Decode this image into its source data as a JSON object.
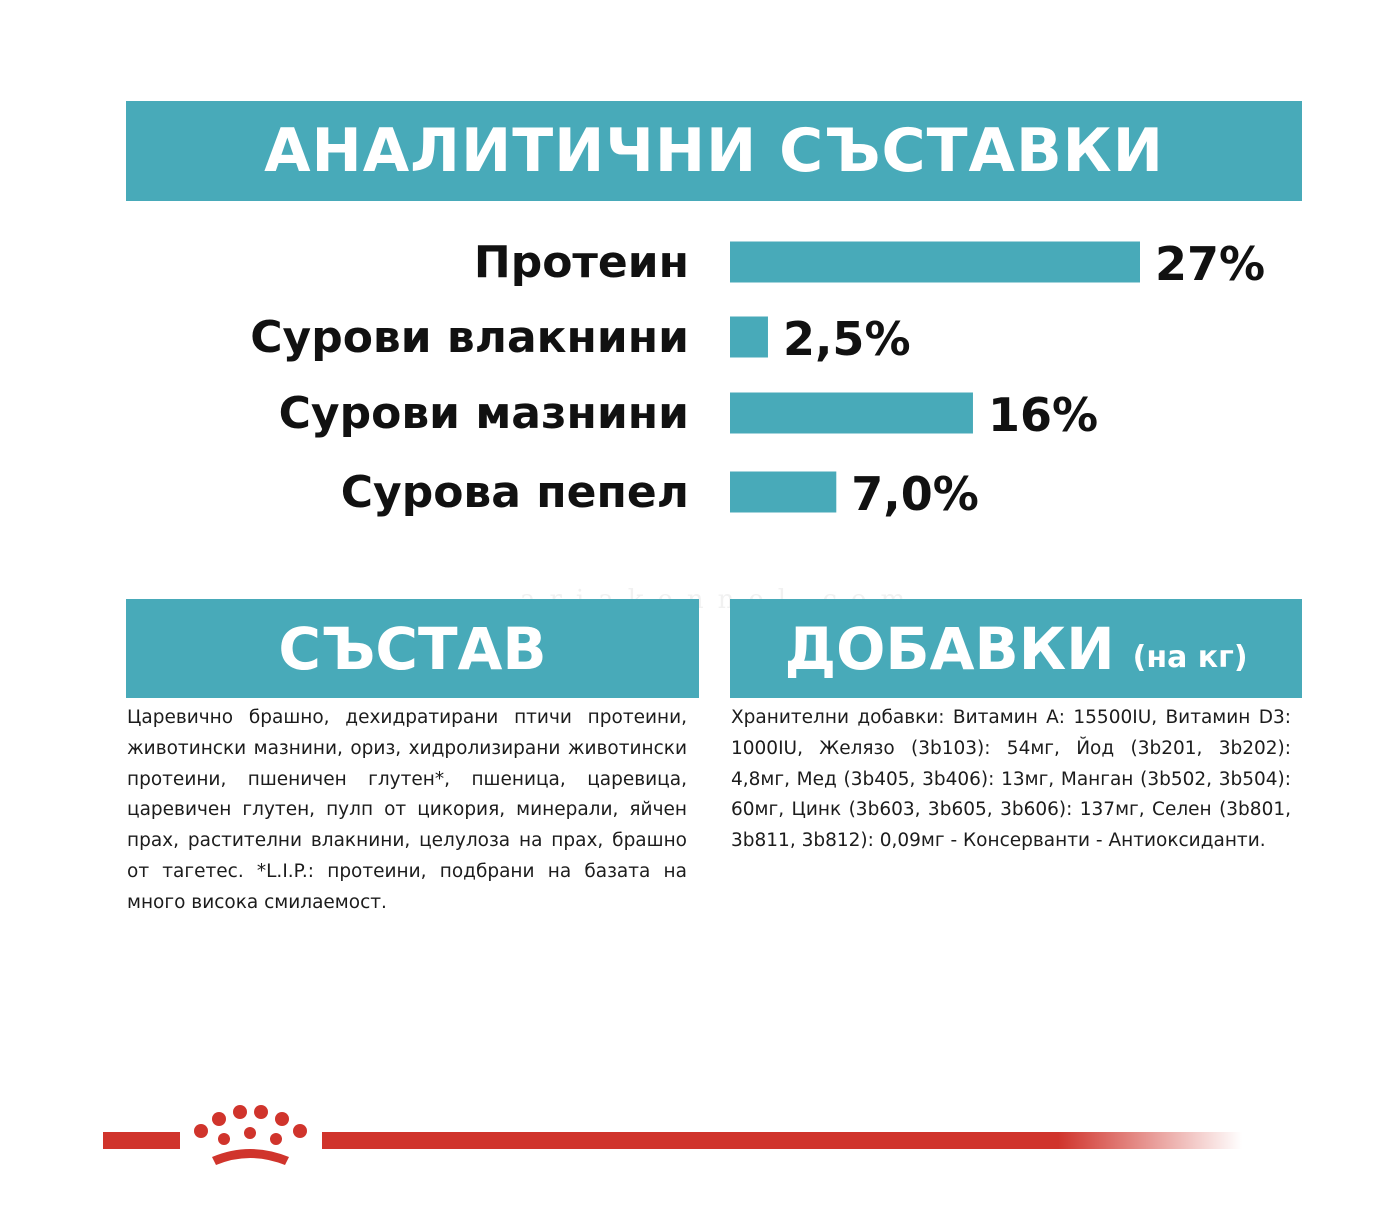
{
  "header": {
    "title": "АНАЛИТИЧНИ СЪСТАВКИ"
  },
  "chart_data": {
    "type": "bar",
    "orientation": "horizontal",
    "categories": [
      "Протеин",
      "Сурови влакнини",
      "Сурови мазнини",
      "Сурова пепел"
    ],
    "values": [
      27,
      2.5,
      16,
      7.0
    ],
    "value_labels": [
      "27%",
      "2,5%",
      "16%",
      "7,0%"
    ],
    "unit": "%",
    "grid": false,
    "bar_color": "#48aab9"
  },
  "composition": {
    "title": "СЪСТАВ",
    "text": "Царевично брашно, дехидратирани птичи протеини, животински мазнини, ориз, хидролизирани животински протеини, пшеничен глутен*, пшеница, царевица, царевичен глутен, пулп от цикория, минерали, яйчен прах, растителни влакнини, целулоза на прах, брашно от тагетес. *L.I.P.: протеини, подбрани на базата на много висока смилаемост."
  },
  "additives": {
    "title": "ДОБАВКИ",
    "unit": "(на кг)",
    "text": "Хранителни добавки: Витамин А: 15500IU, Витамин D3: 1000IU, Желязо (3b103): 54мг, Йод (3b201, 3b202): 4,8мг, Мед (3b405, 3b406): 13мг, Манган (3b502, 3b504): 60мг, Цинк (3b603, 3b605, 3b606): 137мг, Селен (3b801, 3b811, 3b812): 0,09мг - Консерванти - Антиоксиданти."
  },
  "watermark": "ariakennel.com",
  "colors": {
    "accent": "#48aab9",
    "brand_red": "#d0342c",
    "text": "#1a1a1a"
  },
  "footer": {
    "logo_icon": "royal-canin-crown-icon"
  }
}
